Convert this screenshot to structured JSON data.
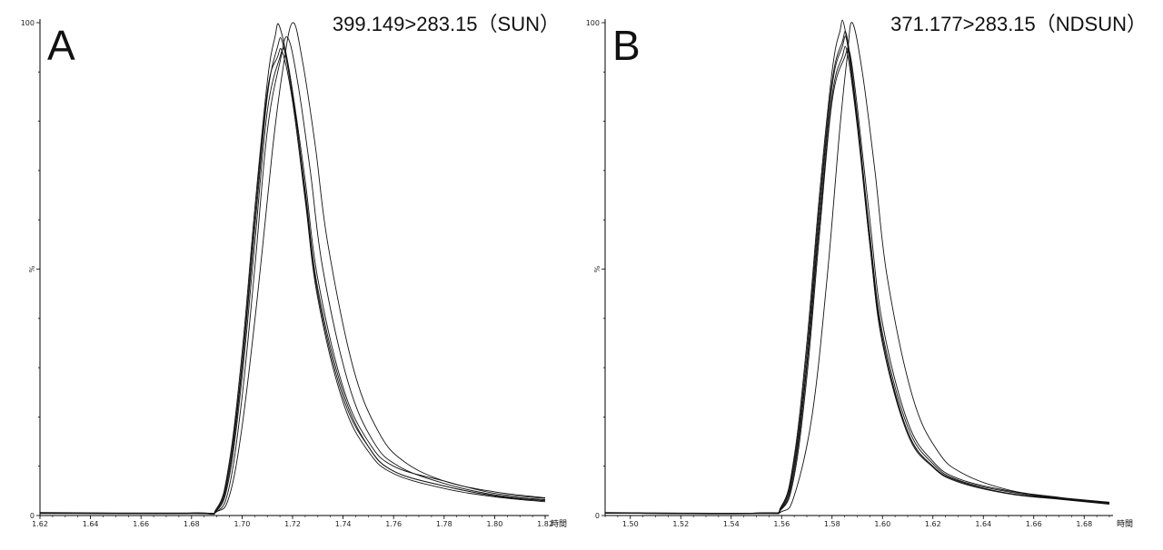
{
  "chart_data": [
    {
      "type": "line",
      "panel_label": "A",
      "title": "399.149>283.15（SUN）",
      "xlabel": "時間",
      "ylabel": "%",
      "xlim": [
        1.62,
        1.82
      ],
      "ylim": [
        0,
        100
      ],
      "x_ticks": [
        "1.62",
        "1.64",
        "1.66",
        "1.68",
        "1.70",
        "1.72",
        "1.74",
        "1.76",
        "1.78",
        "1.80",
        "1.82"
      ],
      "y_ticks": [
        "0",
        "100"
      ],
      "peak_center": 1.715,
      "series": [
        {
          "x": [
            1.62,
            1.68,
            1.69,
            1.695,
            1.7,
            1.705,
            1.71,
            1.713,
            1.715,
            1.72,
            1.725,
            1.73,
            1.74,
            1.75,
            1.76,
            1.78,
            1.8,
            1.82
          ],
          "y": [
            0.5,
            0.5,
            1.5,
            11,
            33,
            62,
            88,
            97,
            99,
            86,
            65,
            45,
            24,
            14,
            9,
            6,
            4,
            3
          ]
        },
        {
          "x": [
            1.62,
            1.68,
            1.69,
            1.695,
            1.7,
            1.705,
            1.71,
            1.714,
            1.716,
            1.72,
            1.725,
            1.73,
            1.74,
            1.75,
            1.76,
            1.78,
            1.8,
            1.82
          ],
          "y": [
            0.5,
            0.4,
            1.2,
            9,
            30,
            58,
            85,
            95,
            96,
            85,
            66,
            46,
            25,
            14,
            9,
            6,
            4,
            3
          ]
        },
        {
          "x": [
            1.62,
            1.68,
            1.69,
            1.695,
            1.7,
            1.705,
            1.71,
            1.715,
            1.717,
            1.72,
            1.725,
            1.73,
            1.74,
            1.75,
            1.76,
            1.78,
            1.8,
            1.82
          ],
          "y": [
            0.6,
            0.5,
            1.0,
            8,
            28,
            55,
            82,
            93,
            94,
            86,
            68,
            48,
            26,
            15,
            10,
            7,
            4.5,
            3.5
          ]
        },
        {
          "x": [
            1.62,
            1.68,
            1.69,
            1.695,
            1.7,
            1.705,
            1.71,
            1.715,
            1.718,
            1.722,
            1.727,
            1.732,
            1.742,
            1.752,
            1.762,
            1.78,
            1.8,
            1.82
          ],
          "y": [
            0.4,
            0.4,
            0.8,
            6,
            24,
            50,
            78,
            92,
            97,
            88,
            70,
            50,
            27,
            15,
            10,
            6.5,
            4.2,
            3.2
          ]
        },
        {
          "x": [
            1.62,
            1.68,
            1.69,
            1.695,
            1.7,
            1.706,
            1.712,
            1.716,
            1.72,
            1.724,
            1.729,
            1.734,
            1.744,
            1.754,
            1.764,
            1.78,
            1.8,
            1.82
          ],
          "y": [
            0.5,
            0.5,
            0.8,
            4,
            18,
            44,
            74,
            90,
            100,
            92,
            75,
            55,
            30,
            17,
            11,
            7,
            4.8,
            3.6
          ]
        },
        {
          "x": [
            1.62,
            1.68,
            1.69,
            1.695,
            1.7,
            1.705,
            1.71,
            1.714,
            1.716,
            1.72,
            1.725,
            1.73,
            1.74,
            1.75,
            1.76,
            1.78,
            1.8,
            1.82
          ],
          "y": [
            0.5,
            0.5,
            1.3,
            10,
            31,
            60,
            86,
            93,
            94,
            84,
            64,
            44,
            23,
            13,
            8.5,
            5.5,
            3.8,
            2.8
          ]
        }
      ]
    },
    {
      "type": "line",
      "panel_label": "B",
      "title": "371.177>283.15（NDSUN）",
      "xlabel": "時間",
      "ylabel": "%",
      "xlim": [
        1.49,
        1.69
      ],
      "ylim": [
        0,
        100
      ],
      "x_ticks": [
        "1.50",
        "1.52",
        "1.54",
        "1.56",
        "1.58",
        "1.60",
        "1.62",
        "1.64",
        "1.66",
        "1.68"
      ],
      "y_ticks": [
        "0",
        "100"
      ],
      "series": [
        {
          "x": [
            1.49,
            1.55,
            1.56,
            1.565,
            1.57,
            1.575,
            1.58,
            1.583,
            1.585,
            1.59,
            1.595,
            1.6,
            1.61,
            1.62,
            1.63,
            1.65,
            1.67,
            1.69
          ],
          "y": [
            0.5,
            0.5,
            2,
            12,
            35,
            65,
            90,
            98,
            99,
            80,
            55,
            35,
            17,
            10,
            7,
            4.5,
            3.5,
            2.5
          ]
        },
        {
          "x": [
            1.49,
            1.55,
            1.56,
            1.565,
            1.57,
            1.575,
            1.58,
            1.584,
            1.586,
            1.59,
            1.595,
            1.6,
            1.61,
            1.62,
            1.63,
            1.65,
            1.67,
            1.69
          ],
          "y": [
            0.5,
            0.4,
            1.6,
            10,
            31,
            61,
            87,
            95,
            96,
            80,
            56,
            36,
            17,
            10,
            7,
            4.5,
            3.4,
            2.4
          ]
        },
        {
          "x": [
            1.49,
            1.55,
            1.56,
            1.565,
            1.57,
            1.575,
            1.58,
            1.585,
            1.587,
            1.59,
            1.595,
            1.6,
            1.61,
            1.62,
            1.63,
            1.65,
            1.67,
            1.69
          ],
          "y": [
            0.6,
            0.5,
            1.3,
            8,
            28,
            57,
            84,
            93,
            94,
            83,
            60,
            39,
            19,
            11,
            7.5,
            5,
            3.6,
            2.6
          ]
        },
        {
          "x": [
            1.49,
            1.55,
            1.56,
            1.565,
            1.57,
            1.575,
            1.58,
            1.584,
            1.586,
            1.59,
            1.595,
            1.6,
            1.61,
            1.62,
            1.63,
            1.65,
            1.67,
            1.69
          ],
          "y": [
            0.5,
            0.5,
            1.8,
            11,
            33,
            63,
            88,
            96,
            97,
            81,
            57,
            37,
            18,
            10.5,
            7.2,
            4.8,
            3.5,
            2.5
          ]
        },
        {
          "x": [
            1.49,
            1.55,
            1.56,
            1.565,
            1.572,
            1.578,
            1.583,
            1.586,
            1.588,
            1.592,
            1.597,
            1.602,
            1.612,
            1.622,
            1.632,
            1.65,
            1.67,
            1.69
          ],
          "y": [
            0.5,
            0.4,
            0.8,
            4,
            20,
            48,
            78,
            93,
            100,
            90,
            70,
            48,
            24,
            13,
            8.5,
            5.2,
            3.7,
            2.7
          ]
        },
        {
          "x": [
            1.49,
            1.55,
            1.56,
            1.565,
            1.57,
            1.575,
            1.58,
            1.584,
            1.586,
            1.59,
            1.595,
            1.6,
            1.61,
            1.62,
            1.63,
            1.65,
            1.67,
            1.69
          ],
          "y": [
            0.5,
            0.5,
            1.4,
            9,
            30,
            59,
            85,
            93,
            94,
            79,
            55,
            35,
            16.5,
            9.8,
            6.8,
            4.4,
            3.3,
            2.3
          ]
        }
      ]
    }
  ]
}
